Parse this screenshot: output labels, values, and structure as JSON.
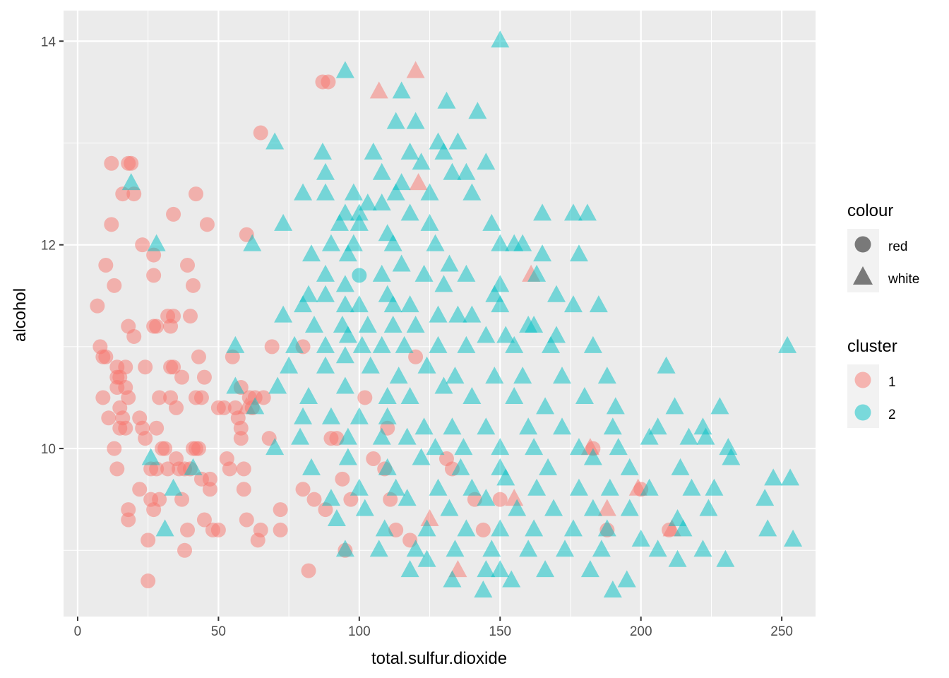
{
  "chart_data": {
    "type": "scatter",
    "title": "",
    "xlabel": "total.sulfur.dioxide",
    "ylabel": "alcohol",
    "xlim": [
      -5,
      262
    ],
    "ylim": [
      8.35,
      14.3
    ],
    "x_ticks": [
      0,
      50,
      100,
      150,
      200,
      250
    ],
    "y_ticks": [
      10,
      12,
      14
    ],
    "grid": true,
    "legend_position": "right",
    "legends": [
      {
        "title": "colour",
        "aesthetic": "shape",
        "entries": [
          {
            "label": "red",
            "shape": "circle"
          },
          {
            "label": "white",
            "shape": "triangle"
          }
        ]
      },
      {
        "title": "cluster",
        "aesthetic": "color",
        "entries": [
          {
            "label": "1",
            "color": "#F8766D"
          },
          {
            "label": "2",
            "color": "#00BFC4"
          }
        ]
      }
    ],
    "colors": {
      "1": "#F8766D",
      "2": "#00BFC4"
    },
    "point_opacity": 0.5,
    "points_red_cluster1": [
      [
        7,
        11.4
      ],
      [
        8,
        11
      ],
      [
        9,
        10.9
      ],
      [
        10,
        10.9
      ],
      [
        9,
        10.5
      ],
      [
        10,
        11.8
      ],
      [
        11,
        10.3
      ],
      [
        12,
        12.8
      ],
      [
        12,
        12.2
      ],
      [
        13,
        11.6
      ],
      [
        13,
        10
      ],
      [
        14,
        9.8
      ],
      [
        14,
        10.8
      ],
      [
        14,
        10.6
      ],
      [
        14,
        10.7
      ],
      [
        15,
        10.7
      ],
      [
        15,
        10.4
      ],
      [
        15,
        10.2
      ],
      [
        16,
        10.3
      ],
      [
        16,
        12.5
      ],
      [
        17,
        10.8
      ],
      [
        17,
        10.2
      ],
      [
        17,
        10.6
      ],
      [
        18,
        12.8
      ],
      [
        18,
        11.2
      ],
      [
        18,
        10.5
      ],
      [
        18,
        9.3
      ],
      [
        18,
        9.4
      ],
      [
        19,
        12.8
      ],
      [
        20,
        11.1
      ],
      [
        20,
        12.5
      ],
      [
        22,
        10.3
      ],
      [
        22,
        9.6
      ],
      [
        23,
        12
      ],
      [
        23,
        10.2
      ],
      [
        24,
        10.8
      ],
      [
        24,
        10.1
      ],
      [
        25,
        8.7
      ],
      [
        25,
        9.1
      ],
      [
        26,
        9.5
      ],
      [
        26,
        9.8
      ],
      [
        27,
        11.9
      ],
      [
        27,
        11.7
      ],
      [
        27,
        11.2
      ],
      [
        27,
        9.4
      ],
      [
        28,
        11.2
      ],
      [
        28,
        10.2
      ],
      [
        28,
        9.8
      ],
      [
        29,
        9.5
      ],
      [
        29,
        10.5
      ],
      [
        30,
        10
      ],
      [
        31,
        10
      ],
      [
        32,
        9.8
      ],
      [
        32,
        11.3
      ],
      [
        33,
        10.8
      ],
      [
        33,
        11.2
      ],
      [
        33,
        10.5
      ],
      [
        34,
        12.3
      ],
      [
        34,
        11.3
      ],
      [
        34,
        10.8
      ],
      [
        35,
        9.9
      ],
      [
        35,
        10.4
      ],
      [
        36,
        9.8
      ],
      [
        37,
        10.7
      ],
      [
        37,
        9.5
      ],
      [
        38,
        9.8
      ],
      [
        38,
        9
      ],
      [
        39,
        11.8
      ],
      [
        39,
        9.2
      ],
      [
        40,
        9.8
      ],
      [
        40,
        11.3
      ],
      [
        41,
        11.6
      ],
      [
        41,
        10
      ],
      [
        42,
        12.5
      ],
      [
        42,
        10.5
      ],
      [
        42,
        10
      ],
      [
        43,
        10.9
      ],
      [
        43,
        10
      ],
      [
        44,
        10.5
      ],
      [
        44,
        9.7
      ],
      [
        45,
        9.3
      ],
      [
        45,
        10.7
      ],
      [
        46,
        12.2
      ],
      [
        47,
        9.6
      ],
      [
        47,
        9.7
      ],
      [
        48,
        9.2
      ],
      [
        50,
        9.2
      ],
      [
        50,
        10.4
      ],
      [
        52,
        10.4
      ],
      [
        53,
        9.9
      ],
      [
        54,
        9.8
      ],
      [
        55,
        10.9
      ],
      [
        56,
        10.4
      ],
      [
        57,
        10.3
      ],
      [
        58,
        10.2
      ],
      [
        58,
        10.1
      ],
      [
        58,
        10.6
      ],
      [
        59,
        9.8
      ],
      [
        59,
        9.6
      ],
      [
        60,
        12.1
      ],
      [
        60,
        9.3
      ],
      [
        61,
        10.5
      ],
      [
        62,
        10.4
      ],
      [
        63,
        10.5
      ],
      [
        64,
        9.1
      ],
      [
        65,
        9.2
      ],
      [
        65,
        13.1
      ],
      [
        66,
        10.5
      ],
      [
        68,
        10.1
      ],
      [
        69,
        11
      ],
      [
        72,
        9.4
      ],
      [
        72,
        9.2
      ],
      [
        80,
        11
      ],
      [
        80,
        9.6
      ],
      [
        82,
        8.8
      ],
      [
        84,
        9.5
      ],
      [
        87,
        13.6
      ],
      [
        88,
        9.4
      ],
      [
        89,
        13.6
      ],
      [
        90,
        10.1
      ],
      [
        92,
        10.1
      ],
      [
        94,
        9.7
      ],
      [
        95,
        9
      ],
      [
        97,
        9.5
      ],
      [
        102,
        10.5
      ],
      [
        105,
        9.9
      ],
      [
        109,
        9.8
      ],
      [
        110,
        10.2
      ],
      [
        111,
        9.5
      ],
      [
        113,
        9.2
      ],
      [
        118,
        9.1
      ],
      [
        120,
        10.9
      ],
      [
        131,
        9.9
      ],
      [
        133,
        9.8
      ],
      [
        141,
        9.5
      ],
      [
        144,
        9.2
      ],
      [
        150,
        9.5
      ],
      [
        183,
        10
      ],
      [
        188,
        9.2
      ],
      [
        200,
        9.6
      ],
      [
        210,
        9.2
      ]
    ],
    "points_red_cluster2": [
      [
        100,
        11.7
      ]
    ],
    "points_white_cluster1": [
      [
        107,
        13.5
      ],
      [
        120,
        13.7
      ],
      [
        121,
        12.6
      ],
      [
        161,
        11.7
      ],
      [
        135,
        8.8
      ],
      [
        125,
        9.3
      ],
      [
        182,
        10
      ],
      [
        188,
        9.4
      ],
      [
        199,
        9.6
      ],
      [
        211,
        9.2
      ],
      [
        60,
        10.4
      ],
      [
        155,
        9.5
      ]
    ],
    "points_white_cluster2": [
      [
        150,
        14
      ],
      [
        95,
        13.7
      ],
      [
        115,
        13.5
      ],
      [
        131,
        13.4
      ],
      [
        142,
        13.3
      ],
      [
        113,
        13.2
      ],
      [
        120,
        13.2
      ],
      [
        128,
        13
      ],
      [
        135,
        13
      ],
      [
        70,
        13
      ],
      [
        87,
        12.9
      ],
      [
        105,
        12.9
      ],
      [
        118,
        12.9
      ],
      [
        130,
        12.9
      ],
      [
        88,
        12.7
      ],
      [
        108,
        12.7
      ],
      [
        122,
        12.8
      ],
      [
        145,
        12.8
      ],
      [
        115,
        12.6
      ],
      [
        133,
        12.7
      ],
      [
        138,
        12.7
      ],
      [
        80,
        12.5
      ],
      [
        88,
        12.5
      ],
      [
        98,
        12.5
      ],
      [
        103,
        12.4
      ],
      [
        113,
        12.5
      ],
      [
        125,
        12.5
      ],
      [
        140,
        12.5
      ],
      [
        95,
        12.3
      ],
      [
        100,
        12.3
      ],
      [
        108,
        12.4
      ],
      [
        118,
        12.3
      ],
      [
        165,
        12.3
      ],
      [
        176,
        12.3
      ],
      [
        181,
        12.3
      ],
      [
        73,
        12.2
      ],
      [
        93,
        12.2
      ],
      [
        100,
        12.2
      ],
      [
        110,
        12.1
      ],
      [
        125,
        12.2
      ],
      [
        147,
        12.2
      ],
      [
        62,
        12
      ],
      [
        90,
        12
      ],
      [
        98,
        12
      ],
      [
        112,
        12
      ],
      [
        127,
        12
      ],
      [
        150,
        12
      ],
      [
        155,
        12
      ],
      [
        158,
        12
      ],
      [
        165,
        11.9
      ],
      [
        19,
        12.6
      ],
      [
        28,
        12
      ],
      [
        83,
        11.9
      ],
      [
        96,
        11.9
      ],
      [
        115,
        11.8
      ],
      [
        132,
        11.8
      ],
      [
        178,
        11.9
      ],
      [
        88,
        11.7
      ],
      [
        95,
        11.6
      ],
      [
        108,
        11.7
      ],
      [
        123,
        11.7
      ],
      [
        138,
        11.7
      ],
      [
        150,
        11.6
      ],
      [
        163,
        11.7
      ],
      [
        82,
        11.5
      ],
      [
        88,
        11.5
      ],
      [
        110,
        11.5
      ],
      [
        130,
        11.6
      ],
      [
        148,
        11.5
      ],
      [
        170,
        11.5
      ],
      [
        73,
        11.3
      ],
      [
        80,
        11.4
      ],
      [
        95,
        11.4
      ],
      [
        100,
        11.4
      ],
      [
        112,
        11.4
      ],
      [
        118,
        11.4
      ],
      [
        128,
        11.3
      ],
      [
        140,
        11.3
      ],
      [
        150,
        11.4
      ],
      [
        160,
        11.2
      ],
      [
        176,
        11.4
      ],
      [
        185,
        11.4
      ],
      [
        84,
        11.2
      ],
      [
        94,
        11.2
      ],
      [
        103,
        11.2
      ],
      [
        112,
        11.2
      ],
      [
        120,
        11.2
      ],
      [
        135,
        11.3
      ],
      [
        145,
        11.1
      ],
      [
        152,
        11.1
      ],
      [
        162,
        11.2
      ],
      [
        170,
        11.1
      ],
      [
        77,
        11
      ],
      [
        88,
        11
      ],
      [
        96,
        11.1
      ],
      [
        101,
        11
      ],
      [
        108,
        11
      ],
      [
        116,
        11
      ],
      [
        128,
        11
      ],
      [
        138,
        11
      ],
      [
        155,
        11
      ],
      [
        168,
        11
      ],
      [
        183,
        11
      ],
      [
        252,
        11
      ],
      [
        56,
        11
      ],
      [
        75,
        10.8
      ],
      [
        88,
        10.8
      ],
      [
        95,
        10.9
      ],
      [
        104,
        10.8
      ],
      [
        114,
        10.7
      ],
      [
        124,
        10.8
      ],
      [
        134,
        10.7
      ],
      [
        148,
        10.7
      ],
      [
        158,
        10.7
      ],
      [
        172,
        10.7
      ],
      [
        188,
        10.7
      ],
      [
        209,
        10.8
      ],
      [
        56,
        10.6
      ],
      [
        71,
        10.6
      ],
      [
        82,
        10.5
      ],
      [
        95,
        10.6
      ],
      [
        110,
        10.5
      ],
      [
        118,
        10.5
      ],
      [
        130,
        10.6
      ],
      [
        140,
        10.5
      ],
      [
        155,
        10.5
      ],
      [
        166,
        10.4
      ],
      [
        180,
        10.5
      ],
      [
        191,
        10.4
      ],
      [
        212,
        10.4
      ],
      [
        228,
        10.4
      ],
      [
        63,
        10.4
      ],
      [
        80,
        10.3
      ],
      [
        90,
        10.3
      ],
      [
        100,
        10.3
      ],
      [
        110,
        10.3
      ],
      [
        123,
        10.2
      ],
      [
        133,
        10.2
      ],
      [
        145,
        10.2
      ],
      [
        160,
        10.2
      ],
      [
        172,
        10.2
      ],
      [
        190,
        10.2
      ],
      [
        206,
        10.2
      ],
      [
        222,
        10.2
      ],
      [
        79,
        10.1
      ],
      [
        96,
        10.1
      ],
      [
        108,
        10.1
      ],
      [
        117,
        10.1
      ],
      [
        127,
        10
      ],
      [
        137,
        10
      ],
      [
        150,
        10
      ],
      [
        162,
        10
      ],
      [
        178,
        10
      ],
      [
        192,
        10
      ],
      [
        203,
        10.1
      ],
      [
        217,
        10.1
      ],
      [
        223,
        10.1
      ],
      [
        70,
        10
      ],
      [
        83,
        9.8
      ],
      [
        96,
        9.9
      ],
      [
        110,
        9.8
      ],
      [
        122,
        9.9
      ],
      [
        136,
        9.8
      ],
      [
        150,
        9.8
      ],
      [
        167,
        9.8
      ],
      [
        183,
        9.9
      ],
      [
        196,
        9.8
      ],
      [
        214,
        9.8
      ],
      [
        231,
        10
      ],
      [
        232,
        9.9
      ],
      [
        26,
        9.9
      ],
      [
        34,
        9.6
      ],
      [
        41,
        9.8
      ],
      [
        90,
        9.5
      ],
      [
        100,
        9.6
      ],
      [
        113,
        9.6
      ],
      [
        128,
        9.6
      ],
      [
        140,
        9.6
      ],
      [
        152,
        9.7
      ],
      [
        163,
        9.6
      ],
      [
        178,
        9.6
      ],
      [
        189,
        9.6
      ],
      [
        203,
        9.6
      ],
      [
        218,
        9.6
      ],
      [
        226,
        9.6
      ],
      [
        244,
        9.5
      ],
      [
        247,
        9.7
      ],
      [
        253,
        9.7
      ],
      [
        102,
        9.4
      ],
      [
        117,
        9.5
      ],
      [
        132,
        9.4
      ],
      [
        145,
        9.5
      ],
      [
        156,
        9.4
      ],
      [
        169,
        9.4
      ],
      [
        183,
        9.4
      ],
      [
        196,
        9.4
      ],
      [
        213,
        9.3
      ],
      [
        224,
        9.4
      ],
      [
        92,
        9.3
      ],
      [
        109,
        9.2
      ],
      [
        124,
        9.2
      ],
      [
        138,
        9.2
      ],
      [
        150,
        9.2
      ],
      [
        162,
        9.2
      ],
      [
        176,
        9.2
      ],
      [
        188,
        9.2
      ],
      [
        200,
        9.1
      ],
      [
        215,
        9.2
      ],
      [
        31,
        9.2
      ],
      [
        245,
        9.2
      ],
      [
        254,
        9.1
      ],
      [
        95,
        9.0
      ],
      [
        107,
        9.0
      ],
      [
        120,
        9.0
      ],
      [
        134,
        9.0
      ],
      [
        147,
        9.0
      ],
      [
        160,
        9.0
      ],
      [
        173,
        9.0
      ],
      [
        186,
        9.0
      ],
      [
        206,
        9
      ],
      [
        222,
        9
      ],
      [
        230,
        8.9
      ],
      [
        118,
        8.8
      ],
      [
        133,
        8.7
      ],
      [
        150,
        8.8
      ],
      [
        166,
        8.8
      ],
      [
        182,
        8.8
      ],
      [
        195,
        8.7
      ],
      [
        213,
        8.9
      ],
      [
        144,
        8.6
      ],
      [
        154,
        8.7
      ],
      [
        190,
        8.6
      ],
      [
        124,
        8.9
      ],
      [
        145,
        8.8
      ]
    ]
  }
}
